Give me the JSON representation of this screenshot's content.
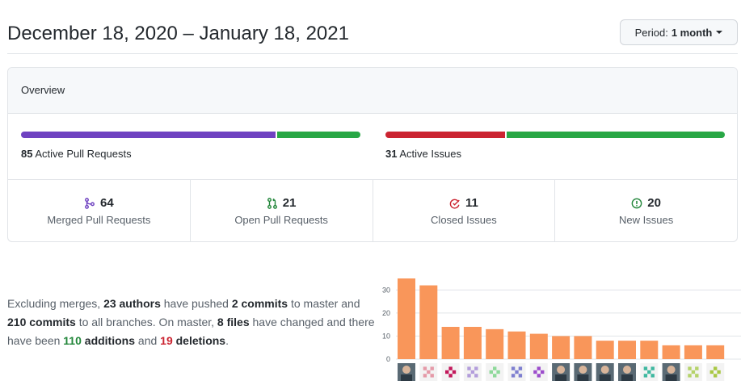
{
  "header": {
    "title": "December 18, 2020 – January 18, 2021",
    "period_label": "Period:",
    "period_value": "1 month"
  },
  "overview": {
    "title": "Overview",
    "pull_requests": {
      "count": "85",
      "label": "Active Pull Requests",
      "merged_fraction": 0.753,
      "merged_color": "#6f42c1",
      "open_color": "#28a745"
    },
    "issues": {
      "count": "31",
      "label": "Active Issues",
      "closed_fraction": 0.355,
      "closed_color": "#cb2431",
      "new_color": "#28a745"
    },
    "stats": [
      {
        "count": "64",
        "label": "Merged Pull Requests",
        "icon": "git-merge-icon",
        "color": "#6f42c1"
      },
      {
        "count": "21",
        "label": "Open Pull Requests",
        "icon": "git-pull-request-icon",
        "color": "#22863a"
      },
      {
        "count": "11",
        "label": "Closed Issues",
        "icon": "issue-closed-icon",
        "color": "#cb2431"
      },
      {
        "count": "20",
        "label": "New Issues",
        "icon": "issue-opened-icon",
        "color": "#22863a"
      }
    ]
  },
  "summary": {
    "t1": "Excluding merges, ",
    "authors": "23 authors",
    "t2": " have pushed ",
    "commits_master": "2 commits",
    "t3": " to master and ",
    "commits_all": "210 commits",
    "t4": " to all branches. On master, ",
    "files": "8 files",
    "t5": " have changed and there have been ",
    "additions_num": "110",
    "additions_word": " additions",
    "t6": " and ",
    "deletions_num": "19",
    "deletions_word": " deletions",
    "t7": "."
  },
  "chart_data": {
    "type": "bar",
    "values": [
      35,
      32,
      14,
      14,
      13,
      12,
      11,
      10,
      10,
      8,
      8,
      8,
      6,
      6,
      6
    ],
    "ylim": [
      0,
      35
    ],
    "yticks": [
      "0",
      "10",
      "20",
      "30"
    ],
    "bar_color": "#f9965a",
    "grid": true,
    "avatars": [
      "photo",
      "identicon-pink",
      "identicon-red",
      "identicon-lavender",
      "identicon-green",
      "identicon-blue",
      "identicon-purple",
      "photo",
      "photo",
      "photo",
      "photo",
      "identicon-teal",
      "photo",
      "identicon-lime",
      "identicon-olive"
    ]
  }
}
